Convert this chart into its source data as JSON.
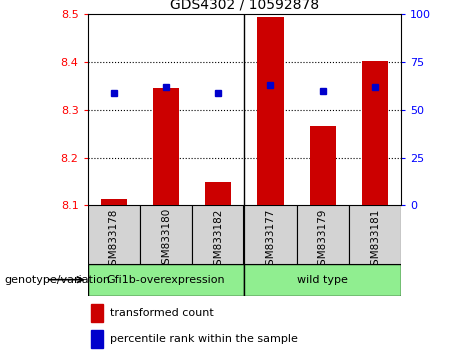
{
  "title": "GDS4302 / 10592878",
  "samples": [
    "GSM833178",
    "GSM833180",
    "GSM833182",
    "GSM833177",
    "GSM833179",
    "GSM833181"
  ],
  "red_values": [
    8.113,
    8.345,
    8.148,
    8.495,
    8.267,
    8.403
  ],
  "blue_values": [
    8.335,
    8.348,
    8.335,
    8.352,
    8.34,
    8.348
  ],
  "ylim_left": [
    8.1,
    8.5
  ],
  "ylim_right": [
    0,
    100
  ],
  "yticks_left": [
    8.1,
    8.2,
    8.3,
    8.4,
    8.5
  ],
  "yticks_right": [
    0,
    25,
    50,
    75,
    100
  ],
  "sample_bg_color": "#d3d3d3",
  "group1_color": "#90EE90",
  "group2_color": "#90EE90",
  "group1_label": "Gfi1b-overexpression",
  "group2_label": "wild type",
  "red_color": "#cc0000",
  "blue_color": "#0000cc",
  "bar_width": 0.5,
  "base_value": 8.1,
  "genotype_label": "genotype/variation",
  "legend_red": "transformed count",
  "legend_blue": "percentile rank within the sample",
  "n_group1": 3,
  "n_group2": 3
}
